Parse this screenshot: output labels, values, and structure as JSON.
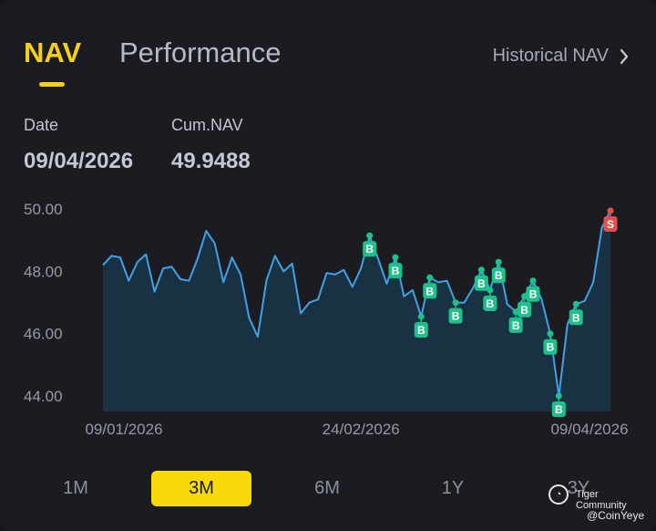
{
  "tabs": {
    "active": "NAV",
    "other": "Performance"
  },
  "historical_link": "Historical NAV",
  "labels": {
    "date": "Date",
    "cum_nav": "Cum.NAV"
  },
  "values": {
    "date": "09/04/2026",
    "cum_nav": "49.9488"
  },
  "colors": {
    "accent": "#f5cf18",
    "line": "#3fa2e6",
    "buy": "#1fc18a",
    "sell": "#e3504b"
  },
  "chart_data": {
    "type": "area",
    "ylim": [
      43.5,
      50.3
    ],
    "yticks": [
      "50.00",
      "48.00",
      "46.00",
      "44.00"
    ],
    "ytick_values": [
      50,
      48,
      46,
      44
    ],
    "xticks": [
      "09/01/2026",
      "24/02/2026",
      "09/04/2026"
    ],
    "xtick_indices": [
      0,
      30,
      59
    ],
    "values": [
      48.2,
      48.5,
      48.45,
      47.7,
      48.3,
      48.55,
      47.35,
      48.1,
      48.15,
      47.75,
      47.7,
      48.4,
      49.3,
      48.9,
      47.65,
      48.45,
      47.9,
      46.5,
      45.9,
      47.7,
      48.5,
      48.0,
      48.25,
      46.65,
      47.0,
      47.1,
      47.95,
      47.9,
      48.05,
      47.5,
      48.1,
      49.15,
      48.4,
      47.6,
      48.45,
      47.2,
      47.4,
      46.55,
      47.8,
      47.65,
      47.7,
      47.0,
      47.0,
      47.45,
      48.05,
      47.4,
      48.3,
      46.95,
      46.7,
      47.2,
      47.7,
      47.1,
      46.0,
      44.0,
      46.3,
      46.95,
      47.05,
      47.65,
      49.4,
      49.95
    ],
    "markers": [
      {
        "i": 31,
        "type": "B"
      },
      {
        "i": 34,
        "type": "B"
      },
      {
        "i": 37,
        "type": "B"
      },
      {
        "i": 38,
        "type": "B"
      },
      {
        "i": 41,
        "type": "B"
      },
      {
        "i": 44,
        "type": "B"
      },
      {
        "i": 45,
        "type": "B"
      },
      {
        "i": 46,
        "type": "B"
      },
      {
        "i": 48,
        "type": "B"
      },
      {
        "i": 49,
        "type": "B"
      },
      {
        "i": 50,
        "type": "B"
      },
      {
        "i": 52,
        "type": "B"
      },
      {
        "i": 53,
        "type": "B"
      },
      {
        "i": 55,
        "type": "B"
      },
      {
        "i": 59,
        "type": "S"
      }
    ]
  },
  "ranges": [
    "1M",
    "3M",
    "6M",
    "1Y",
    "3Y"
  ],
  "active_range": "3M",
  "watermark": {
    "brand": "Tiger Community",
    "user": "@CoinYeye"
  }
}
